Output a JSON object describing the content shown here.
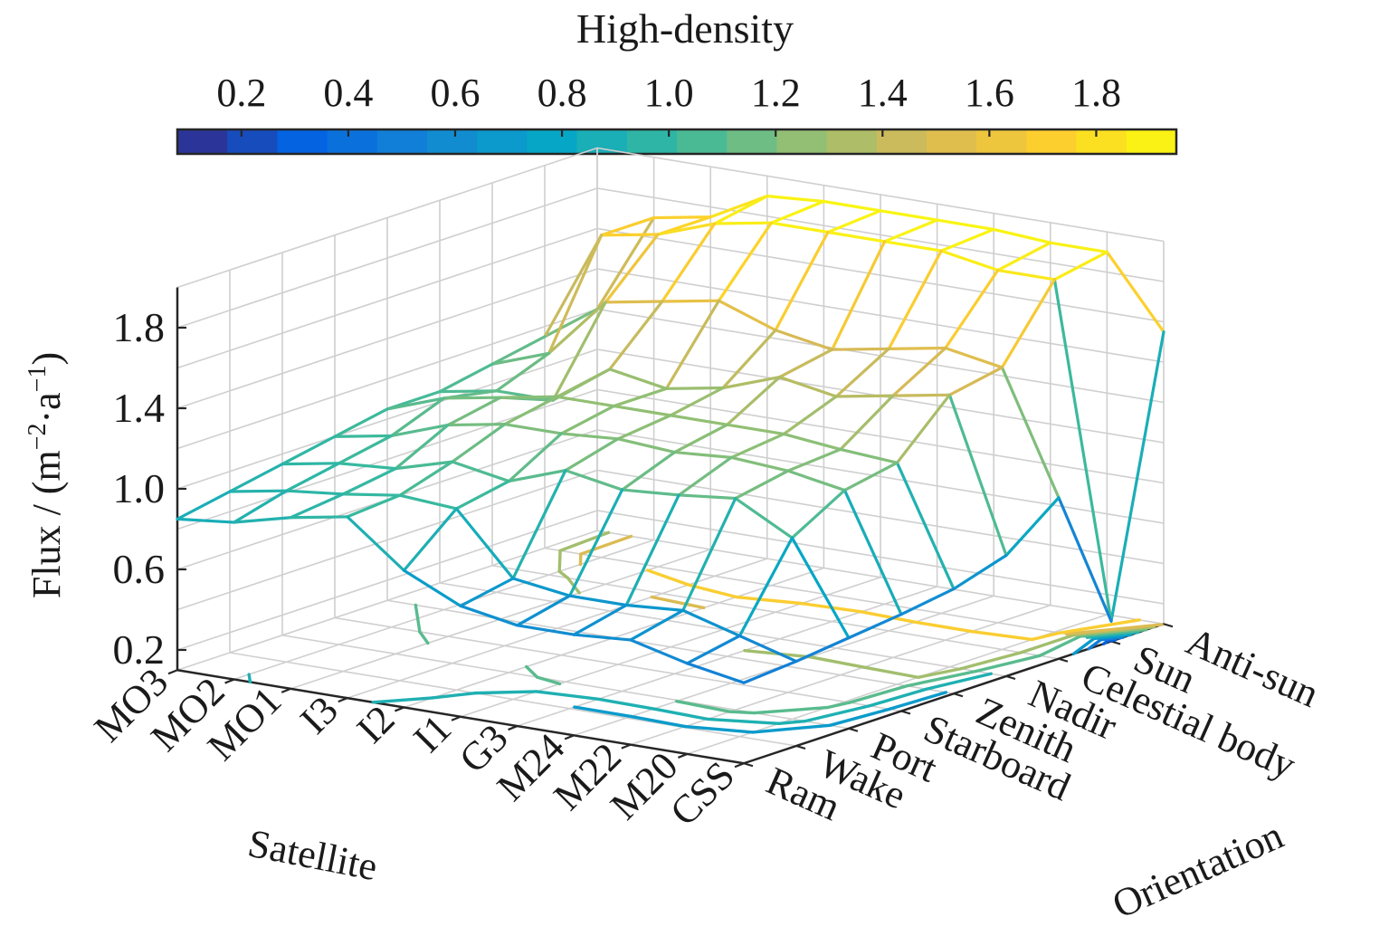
{
  "chart_data": {
    "type": "3d-mesh-surface",
    "view": "3d perspective, mesh with projected contour lines on floor",
    "colorbar": {
      "title": "High-density",
      "ticks": [
        0.2,
        0.4,
        0.6,
        0.8,
        1.0,
        1.2,
        1.4,
        1.6,
        1.8
      ],
      "tick_labels": [
        "0.2",
        "0.4",
        "0.6",
        "0.8",
        "1.0",
        "1.2",
        "1.4",
        "1.6",
        "1.8"
      ],
      "range": [
        0.08,
        1.95
      ],
      "colormap": [
        "#352a87",
        "#0363e1",
        "#1485d4",
        "#06a7c6",
        "#38b99e",
        "#92bf73",
        "#d9ba56",
        "#fcce2e",
        "#f9fb0e"
      ],
      "position": "top"
    },
    "satellite_axis": {
      "title": "Satellite",
      "categories": [
        "MO3",
        "MO2",
        "MO1",
        "I3",
        "I2",
        "I1",
        "G3",
        "M24",
        "M22",
        "M20",
        "CSS"
      ]
    },
    "orientation_axis": {
      "title": "Orientation",
      "categories": [
        "Ram",
        "Wake",
        "Port",
        "Starboard",
        "Zenith",
        "Nadir",
        "Celestial body",
        "Sun",
        "Anti-sun"
      ]
    },
    "z_axis": {
      "title": "Flux / (m",
      "title_exponent": "−2",
      "title_mid": "·a",
      "title_exponent2": "−1",
      "title_end": ")",
      "ticks": [
        0.2,
        0.6,
        1.0,
        1.4,
        1.8
      ],
      "tick_labels": [
        "0.2",
        "0.6",
        "1.0",
        "1.4",
        "1.8"
      ],
      "range": [
        0.1,
        2.0
      ]
    },
    "series": [
      {
        "orientation": "Ram",
        "values": [
          0.85,
          0.88,
          0.95,
          1.0,
          0.78,
          0.65,
          0.6,
          0.6,
          0.62,
          0.55,
          0.5
        ]
      },
      {
        "orientation": "Wake",
        "values": [
          0.9,
          0.95,
          0.98,
          1.02,
          1.0,
          0.7,
          0.66,
          0.66,
          0.68,
          0.6,
          0.52
        ]
      },
      {
        "orientation": "Port",
        "values": [
          0.95,
          1.0,
          1.02,
          1.1,
          1.05,
          1.15,
          1.1,
          1.12,
          1.15,
          1.0,
          0.55
        ]
      },
      {
        "orientation": "Starboard",
        "values": [
          1.0,
          1.05,
          1.15,
          1.2,
          1.2,
          1.22,
          1.2,
          1.22,
          1.2,
          1.15,
          0.58
        ]
      },
      {
        "orientation": "Zenith",
        "values": [
          1.05,
          1.15,
          1.2,
          1.25,
          1.25,
          1.25,
          1.25,
          1.25,
          1.22,
          1.2,
          0.62
        ]
      },
      {
        "orientation": "Nadir",
        "values": [
          1.05,
          1.1,
          1.1,
          1.3,
          1.25,
          1.3,
          1.4,
          1.35,
          1.4,
          1.45,
          0.7
        ]
      },
      {
        "orientation": "Celestial body",
        "values": [
          1.1,
          1.2,
          1.5,
          1.55,
          1.6,
          1.5,
          1.45,
          1.5,
          1.55,
          1.5,
          0.9
        ]
      },
      {
        "orientation": "Sun",
        "values": [
          1.15,
          1.7,
          1.75,
          1.85,
          1.9,
          1.9,
          1.9,
          1.9,
          1.85,
          1.85,
          0.2
        ]
      },
      {
        "orientation": "Anti-sun",
        "values": [
          1.2,
          1.7,
          1.75,
          1.9,
          1.92,
          1.92,
          1.92,
          1.92,
          1.9,
          1.9,
          1.55
        ]
      }
    ]
  }
}
